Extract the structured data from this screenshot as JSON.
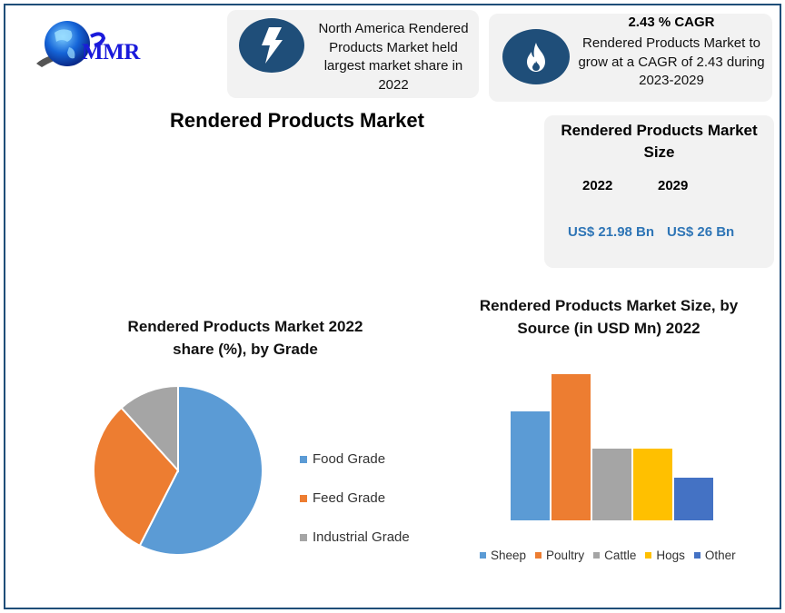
{
  "brand": {
    "logo_text": "MMR"
  },
  "cards": {
    "region": {
      "icon": "lightning-bolt-icon",
      "text": "North America Rendered Products Market held largest market share in 2022"
    },
    "cagr": {
      "icon": "flame-icon",
      "title": "2.43 % CAGR",
      "text": "Rendered Products Market to grow at a CAGR of 2.43 during 2023-2029"
    },
    "market_size": {
      "title": "Rendered Products Market Size",
      "year_start": "2022",
      "year_end": "2029",
      "value_start": "US$ 21.98 Bn",
      "value_end": "US$ 26 Bn"
    }
  },
  "main_title": "Rendered Products Market",
  "colors": {
    "border": "#1f4e79",
    "icon_bg": "#1f4e79",
    "card_bg": "#f2f2f2",
    "value_text": "#2e75b6"
  },
  "chart_data": [
    {
      "type": "pie",
      "title": "Rendered Products Market 2022 share (%), by Grade",
      "categories": [
        "Food Grade",
        "Feed Grade",
        "Industrial Grade"
      ],
      "values": [
        57.5,
        30.8,
        11.7
      ],
      "colors": [
        "#5b9bd5",
        "#ed7d31",
        "#a5a5a5"
      ],
      "legend_position": "right",
      "start_angle": "12 o'clock, clockwise"
    },
    {
      "type": "bar",
      "title": "Rendered Products Market Size, by Source (in USD Mn) 2022",
      "categories": [
        "Sheep",
        "Poultry",
        "Cattle",
        "Hogs",
        "Other"
      ],
      "values": [
        120,
        161,
        79,
        79,
        47
      ],
      "colors": [
        "#5b9bd5",
        "#ed7d31",
        "#a5a5a5",
        "#ffc000",
        "#4472c4"
      ],
      "xlabel": "",
      "ylabel": "",
      "ylim": [
        0,
        161
      ],
      "grid": false,
      "axes_visible": false,
      "legend_position": "bottom",
      "note": "No axis values shown; values are relative bar heights"
    }
  ]
}
